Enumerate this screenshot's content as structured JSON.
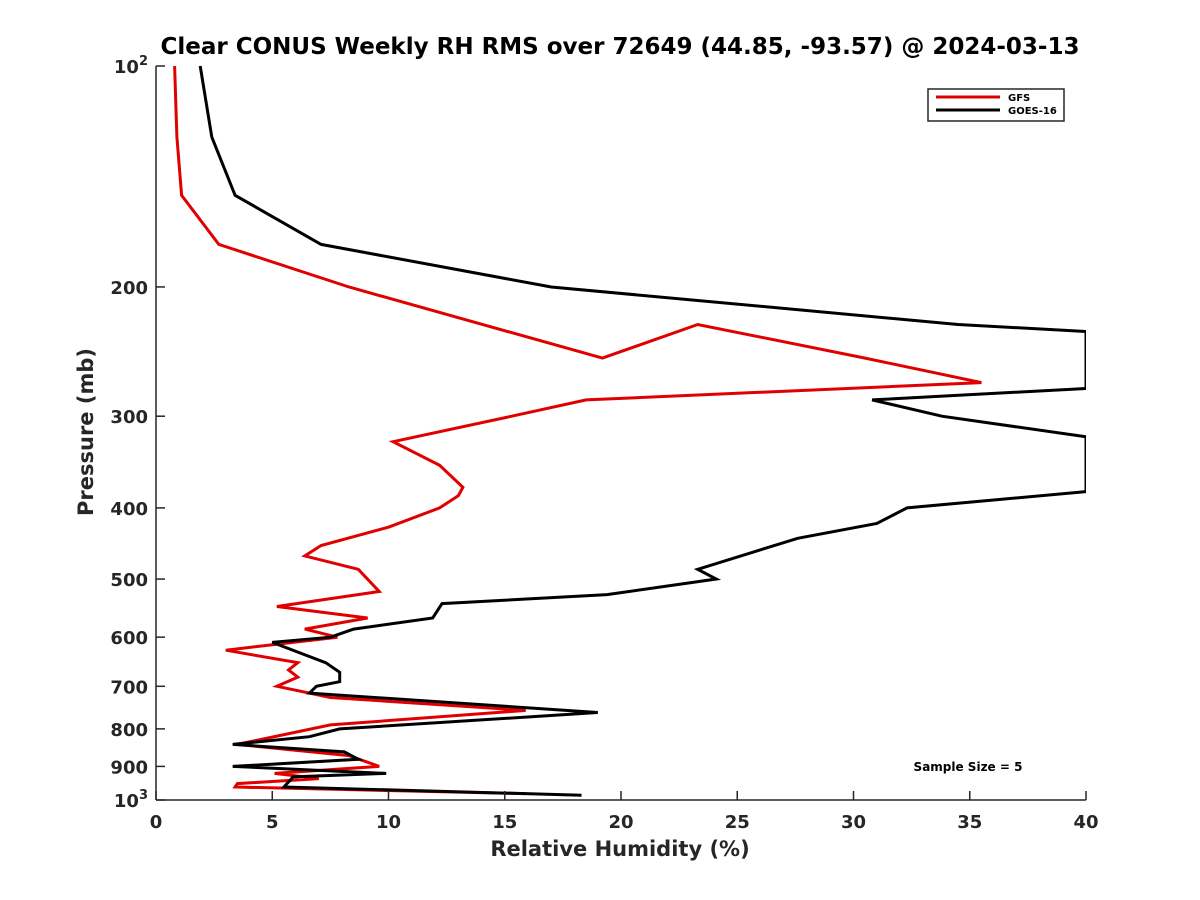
{
  "chart_data": {
    "type": "line",
    "title": "Clear CONUS Weekly RH RMS over 72649 (44.85, -93.57) @ 2024-03-13",
    "xlabel": "Relative Humidity (%)",
    "ylabel": "Pressure (mb)",
    "xlim": [
      0,
      40
    ],
    "ylim": [
      100,
      1000
    ],
    "yscale": "log",
    "y_reversed": true,
    "grid": false,
    "legend_position": "top-right",
    "x_ticks": [
      "0",
      "5",
      "10",
      "15",
      "20",
      "25",
      "30",
      "35",
      "40"
    ],
    "y_ticks": [
      {
        "value": 100,
        "base": "10",
        "exp": "2"
      },
      {
        "value": 200,
        "label": "200"
      },
      {
        "value": 300,
        "label": "300"
      },
      {
        "value": 400,
        "label": "400"
      },
      {
        "value": 500,
        "label": "500"
      },
      {
        "value": 600,
        "label": "600"
      },
      {
        "value": 700,
        "label": "700"
      },
      {
        "value": 800,
        "label": "800"
      },
      {
        "value": 900,
        "label": "900"
      },
      {
        "value": 1000,
        "base": "10",
        "exp": "3"
      }
    ],
    "annotation": "Sample Size = 5",
    "series": [
      {
        "name": "GFS",
        "color": "#e00000",
        "points": [
          {
            "x": 0.8,
            "p": 100
          },
          {
            "x": 0.9,
            "p": 125
          },
          {
            "x": 1.1,
            "p": 150
          },
          {
            "x": 2.7,
            "p": 175
          },
          {
            "x": 8.3,
            "p": 200
          },
          {
            "x": 19.2,
            "p": 250
          },
          {
            "x": 23.3,
            "p": 225
          },
          {
            "x": 30.5,
            "p": 250
          },
          {
            "x": 35.5,
            "p": 270
          },
          {
            "x": 18.5,
            "p": 285
          },
          {
            "x": 15.3,
            "p": 300
          },
          {
            "x": 10.2,
            "p": 325
          },
          {
            "x": 12.2,
            "p": 350
          },
          {
            "x": 13.2,
            "p": 375
          },
          {
            "x": 13.0,
            "p": 385
          },
          {
            "x": 12.2,
            "p": 400
          },
          {
            "x": 10.0,
            "p": 425
          },
          {
            "x": 7.1,
            "p": 450
          },
          {
            "x": 6.4,
            "p": 465
          },
          {
            "x": 8.7,
            "p": 485
          },
          {
            "x": 9.6,
            "p": 520
          },
          {
            "x": 5.2,
            "p": 545
          },
          {
            "x": 9.1,
            "p": 565
          },
          {
            "x": 6.4,
            "p": 585
          },
          {
            "x": 7.8,
            "p": 600
          },
          {
            "x": 3.0,
            "p": 625
          },
          {
            "x": 6.1,
            "p": 650
          },
          {
            "x": 5.7,
            "p": 665
          },
          {
            "x": 6.1,
            "p": 680
          },
          {
            "x": 5.2,
            "p": 700
          },
          {
            "x": 7.5,
            "p": 725
          },
          {
            "x": 15.9,
            "p": 755
          },
          {
            "x": 7.5,
            "p": 790
          },
          {
            "x": 3.5,
            "p": 840
          },
          {
            "x": 8.3,
            "p": 870
          },
          {
            "x": 9.6,
            "p": 900
          },
          {
            "x": 5.1,
            "p": 920
          },
          {
            "x": 7.0,
            "p": 935
          },
          {
            "x": 3.5,
            "p": 950
          },
          {
            "x": 3.4,
            "p": 960
          },
          {
            "x": 15.9,
            "p": 980
          }
        ]
      },
      {
        "name": "GOES-16",
        "color": "#000000",
        "points": [
          {
            "x": 1.9,
            "p": 100
          },
          {
            "x": 2.4,
            "p": 125
          },
          {
            "x": 3.4,
            "p": 150
          },
          {
            "x": 7.1,
            "p": 175
          },
          {
            "x": 17.0,
            "p": 200
          },
          {
            "x": 34.5,
            "p": 225
          },
          {
            "x": 40,
            "p": 230
          },
          {
            "x": 40,
            "p": 275
          },
          {
            "x": 30.8,
            "p": 285
          },
          {
            "x": 33.8,
            "p": 300
          },
          {
            "x": 40,
            "p": 320
          },
          {
            "x": 40,
            "p": 380
          },
          {
            "x": 32.3,
            "p": 400
          },
          {
            "x": 31.0,
            "p": 420
          },
          {
            "x": 27.6,
            "p": 440
          },
          {
            "x": 23.3,
            "p": 485
          },
          {
            "x": 24.1,
            "p": 500
          },
          {
            "x": 19.4,
            "p": 525
          },
          {
            "x": 12.3,
            "p": 540
          },
          {
            "x": 11.9,
            "p": 565
          },
          {
            "x": 8.5,
            "p": 585
          },
          {
            "x": 7.5,
            "p": 600
          },
          {
            "x": 5.0,
            "p": 610
          },
          {
            "x": 7.3,
            "p": 650
          },
          {
            "x": 7.9,
            "p": 670
          },
          {
            "x": 7.9,
            "p": 690
          },
          {
            "x": 6.9,
            "p": 700
          },
          {
            "x": 6.6,
            "p": 715
          },
          {
            "x": 19.0,
            "p": 760
          },
          {
            "x": 7.9,
            "p": 800
          },
          {
            "x": 6.6,
            "p": 820
          },
          {
            "x": 3.3,
            "p": 840
          },
          {
            "x": 8.1,
            "p": 860
          },
          {
            "x": 8.7,
            "p": 880
          },
          {
            "x": 3.3,
            "p": 900
          },
          {
            "x": 9.9,
            "p": 920
          },
          {
            "x": 5.9,
            "p": 930
          },
          {
            "x": 5.5,
            "p": 960
          },
          {
            "x": 18.3,
            "p": 985
          }
        ]
      }
    ]
  }
}
